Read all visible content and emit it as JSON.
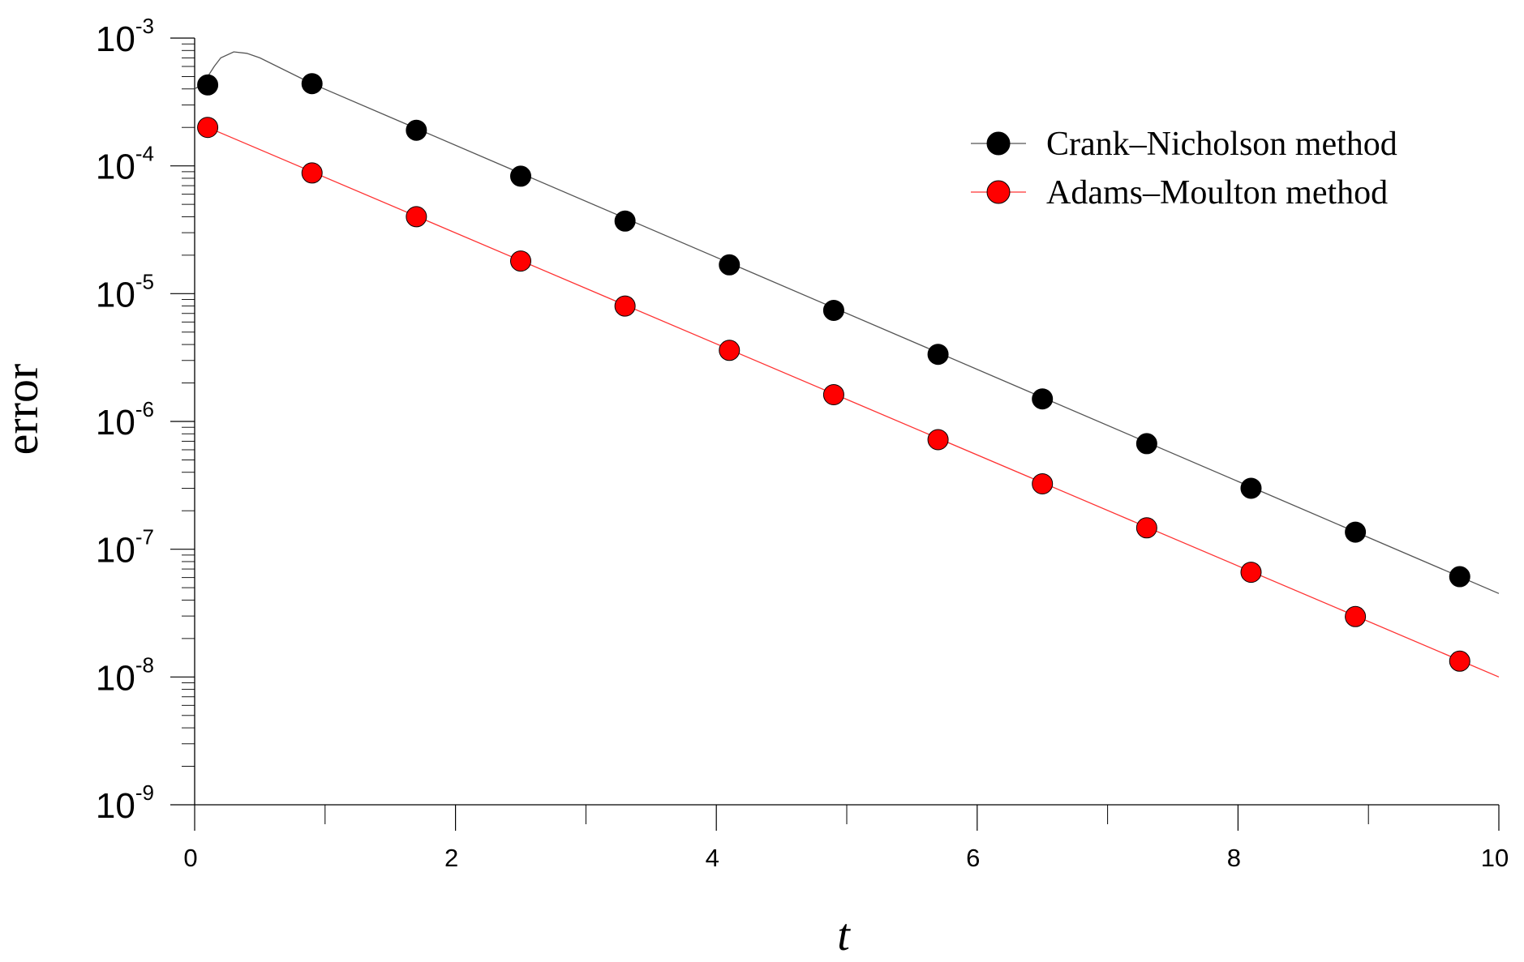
{
  "chart_data": {
    "type": "scatter",
    "title": "",
    "xlabel": "t",
    "ylabel": "error",
    "xlim": [
      0,
      10
    ],
    "ylim": [
      1e-09,
      0.001
    ],
    "yscale": "log",
    "grid": false,
    "legend_position": "top-right",
    "x_ticks": [
      "0",
      "2",
      "4",
      "6",
      "8",
      "10"
    ],
    "y_ticks": [
      {
        "base": "10",
        "exp": "-3",
        "value": 0.001
      },
      {
        "base": "10",
        "exp": "-4",
        "value": 0.0001
      },
      {
        "base": "10",
        "exp": "-5",
        "value": 1e-05
      },
      {
        "base": "10",
        "exp": "-6",
        "value": 1e-06
      },
      {
        "base": "10",
        "exp": "-7",
        "value": 1e-07
      },
      {
        "base": "10",
        "exp": "-8",
        "value": 1e-08
      },
      {
        "base": "10",
        "exp": "-9",
        "value": 1e-09
      }
    ],
    "series": [
      {
        "name": "Crank–Nicholson method",
        "color": "#000000",
        "line_color": "#555555",
        "x": [
          0.1,
          0.9,
          1.7,
          2.5,
          3.3,
          4.1,
          4.9,
          5.7,
          6.5,
          7.3,
          8.1,
          8.9,
          9.7
        ],
        "y": [
          0.00043,
          0.00044,
          0.00019,
          8.3e-05,
          3.7e-05,
          1.68e-05,
          7.4e-06,
          3.35e-06,
          1.5e-06,
          6.7e-07,
          3e-07,
          1.36e-07,
          6.1e-08
        ],
        "line": {
          "x": [
            0.0,
            0.05,
            0.1,
            0.15,
            0.2,
            0.3,
            0.4,
            0.5,
            0.9,
            10.0
          ],
          "y": [
            0.0004,
            0.00043,
            0.0005,
            0.0006,
            0.0007,
            0.00078,
            0.00076,
            0.0007,
            0.00044,
            4.5e-08
          ]
        }
      },
      {
        "name": "Adams–Moulton method",
        "color": "#ff0000",
        "line_color": "#ff3333",
        "x": [
          0.1,
          0.9,
          1.7,
          2.5,
          3.3,
          4.1,
          4.9,
          5.7,
          6.5,
          7.3,
          8.1,
          8.9,
          9.7
        ],
        "y": [
          0.0002,
          8.8e-05,
          4e-05,
          1.8e-05,
          8e-06,
          3.6e-06,
          1.62e-06,
          7.2e-07,
          3.25e-07,
          1.47e-07,
          6.6e-08,
          2.97e-08,
          1.33e-08
        ],
        "line": {
          "x": [
            0.1,
            10.0
          ],
          "y": [
            0.0002,
            1e-08
          ]
        }
      }
    ]
  }
}
